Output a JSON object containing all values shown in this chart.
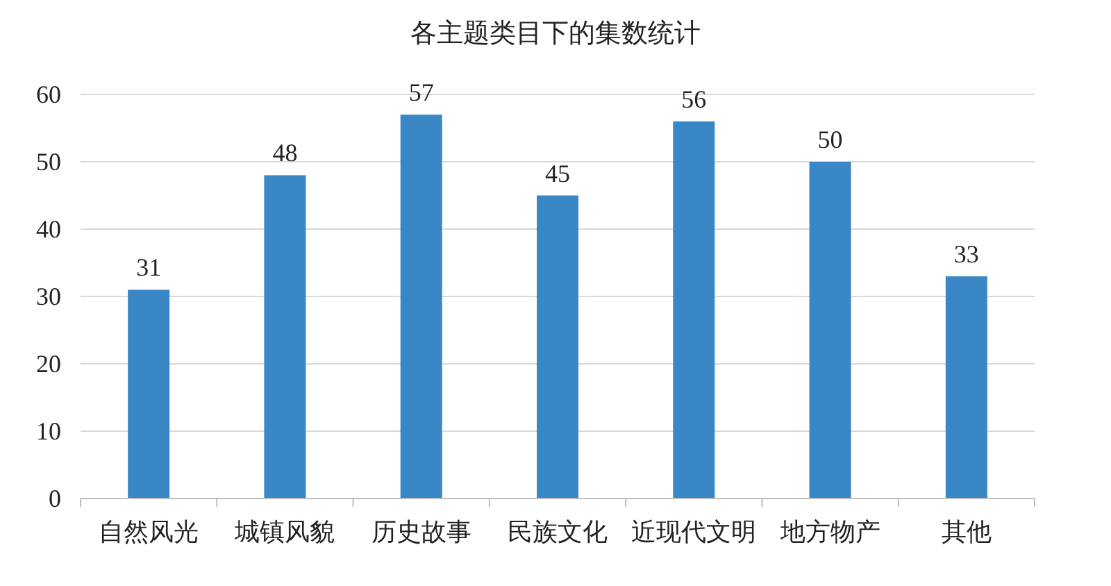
{
  "chart_data": {
    "type": "bar",
    "title": "各主题类目下的集数统计",
    "categories": [
      "自然风光",
      "城镇风貌",
      "历史故事",
      "民族文化",
      "近现代文明",
      "地方物产",
      "其他"
    ],
    "values": [
      31,
      48,
      57,
      45,
      56,
      50,
      33
    ],
    "color": "#3a87c6",
    "ylim": [
      0,
      60
    ],
    "yticks": [
      0,
      10,
      20,
      30,
      40,
      50,
      60
    ],
    "grid": "y",
    "data_labels": true
  }
}
